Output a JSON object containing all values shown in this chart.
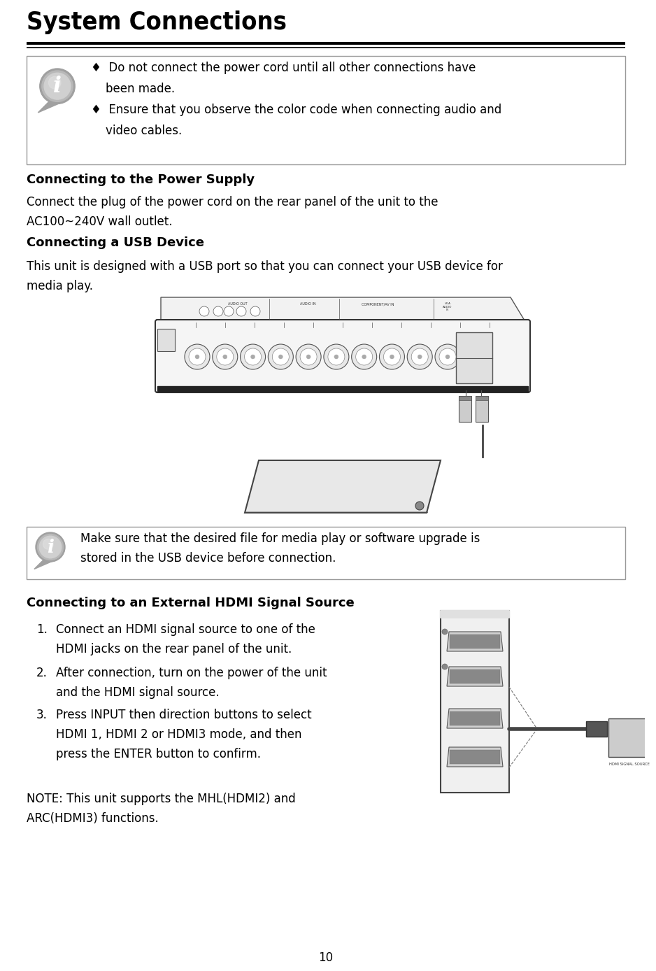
{
  "title": "System Connections",
  "bg_color": "#ffffff",
  "page_number": "10",
  "bullet1_line1": "♦  Do not connect the power cord until all other connections have",
  "bullet1_line2": "    been made.",
  "bullet2_line1": "♦  Ensure that you observe the color code when connecting audio and",
  "bullet2_line2": "    video cables.",
  "section1_heading": "Connecting to the Power Supply",
  "section1_body_1": "Connect the plug of the power cord on the rear panel of the unit to the",
  "section1_body_2": "AC100~240V wall outlet.",
  "section2_heading": "Connecting a USB Device",
  "section2_body_1": "This unit is designed with a USB port so that you can connect your USB device for",
  "section2_body_2": "media play.",
  "info_box2_line1": "Make sure that the desired file for media play or software upgrade is",
  "info_box2_line2": "stored in the USB device before connection.",
  "section3_heading": "Connecting to an External HDMI Signal Source",
  "step1_line1": "Connect an HDMI signal source to one of the",
  "step1_line2": "HDMI jacks on the rear panel of the unit.",
  "step2_line1": "After connection, turn on the power of the unit",
  "step2_line2": "and the HDMI signal source.",
  "step3_line1": "Press INPUT then direction buttons to select",
  "step3_line2": "HDMI 1, HDMI 2 or HDMI3 mode, and then",
  "step3_line3": "press the ENTER button to confirm.",
  "note_line1": "NOTE: This unit supports the MHL(HDMI2) and",
  "note_line2": "ARC(HDMI3) functions.",
  "hdmi_source_label": "HDMI SIGNAL SOURCE",
  "title_fontsize": 26,
  "heading_fontsize": 13,
  "body_fontsize": 12,
  "small_fontsize": 5
}
